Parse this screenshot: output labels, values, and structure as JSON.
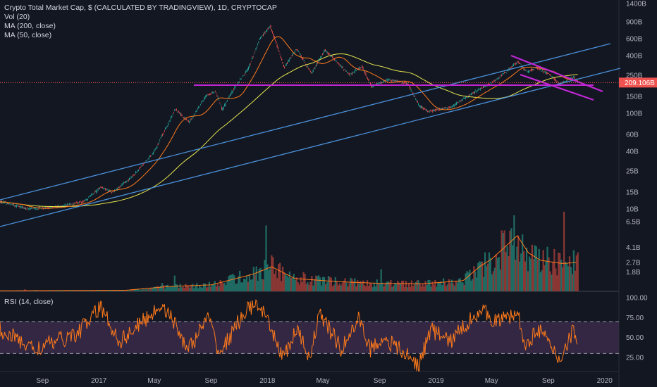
{
  "legend": {
    "title": "Crypto Total Market Cap, $ (CALCULATED BY TRADINGVIEW), 1D, CRYPTOCAP",
    "vol": "Vol (20)",
    "ma200": "MA (200, close)",
    "ma50": "MA (50, close)",
    "rsi": "RSI (14, close)"
  },
  "colors": {
    "background": "#131722",
    "up": "#26a69a",
    "down": "#ef5350",
    "ma50": "#ff7a1a",
    "ma200": "#e6e64d",
    "trendline": "#4a90d9",
    "wedge": "#c026d3",
    "rsi_line": "#ff7a1a",
    "rsi_band": "#3a2a4a",
    "current_price": "#ef5350"
  },
  "chart_data": {
    "type": "candlestick",
    "price_axis": {
      "scale": "log",
      "ticks": [
        "1400B",
        "900B",
        "600B",
        "400B",
        "250B",
        "150B",
        "100B",
        "60B",
        "40B",
        "25B",
        "15B",
        "10B"
      ],
      "current_price_label": "209.106B"
    },
    "volume_axis": {
      "ticks": [
        "6.5B",
        "4.1B",
        "2.7B",
        "1.8B"
      ]
    },
    "rsi_axis": {
      "ticks": [
        "100.00",
        "75.00",
        "50.00",
        "25.00"
      ],
      "levels": [
        70,
        30
      ]
    },
    "time_axis": {
      "ticks": [
        "Sep",
        "2017",
        "May",
        "Sep",
        "2018",
        "May",
        "Sep",
        "2019",
        "May",
        "Sep",
        "2020"
      ]
    },
    "price_anchors": [
      [
        "2016-06-01",
        12
      ],
      [
        "2016-08-01",
        10
      ],
      [
        "2016-10-01",
        10.5
      ],
      [
        "2016-12-01",
        12
      ],
      [
        "2017-01-05",
        17
      ],
      [
        "2017-02-01",
        15
      ],
      [
        "2017-03-15",
        22
      ],
      [
        "2017-05-01",
        40
      ],
      [
        "2017-06-15",
        110
      ],
      [
        "2017-07-15",
        80
      ],
      [
        "2017-08-20",
        150
      ],
      [
        "2017-09-10",
        170
      ],
      [
        "2017-09-25",
        110
      ],
      [
        "2017-10-20",
        180
      ],
      [
        "2017-11-20",
        290
      ],
      [
        "2017-12-15",
        600
      ],
      [
        "2018-01-07",
        820
      ],
      [
        "2018-02-06",
        300
      ],
      [
        "2018-03-05",
        470
      ],
      [
        "2018-04-06",
        260
      ],
      [
        "2018-05-05",
        460
      ],
      [
        "2018-06-28",
        250
      ],
      [
        "2018-07-24",
        310
      ],
      [
        "2018-08-14",
        190
      ],
      [
        "2018-09-20",
        225
      ],
      [
        "2018-10-31",
        205
      ],
      [
        "2018-11-25",
        120
      ],
      [
        "2018-12-15",
        105
      ],
      [
        "2019-02-01",
        115
      ],
      [
        "2019-04-02",
        175
      ],
      [
        "2019-05-15",
        230
      ],
      [
        "2019-06-26",
        345
      ],
      [
        "2019-07-17",
        270
      ],
      [
        "2019-08-06",
        300
      ],
      [
        "2019-09-05",
        250
      ],
      [
        "2019-09-26",
        200
      ],
      [
        "2019-10-26",
        240
      ],
      [
        "2019-11-04",
        209
      ]
    ],
    "volume_anchors": [
      [
        "2016-06-01",
        0.05
      ],
      [
        "2017-03-01",
        0.1
      ],
      [
        "2017-06-01",
        0.45
      ],
      [
        "2017-09-01",
        0.6
      ],
      [
        "2017-12-01",
        1.6
      ],
      [
        "2018-01-10",
        2.3
      ],
      [
        "2018-03-01",
        1.2
      ],
      [
        "2018-06-01",
        0.9
      ],
      [
        "2018-09-01",
        0.75
      ],
      [
        "2018-12-01",
        0.7
      ],
      [
        "2019-03-01",
        1.0
      ],
      [
        "2019-04-05",
        2.3
      ],
      [
        "2019-05-01",
        3.0
      ],
      [
        "2019-06-26",
        5.2
      ],
      [
        "2019-07-20",
        3.6
      ],
      [
        "2019-08-15",
        2.9
      ],
      [
        "2019-10-01",
        2.6
      ],
      [
        "2019-11-04",
        2.7
      ]
    ],
    "rsi_anchors": [
      [
        "2016-06-01",
        60
      ],
      [
        "2016-08-15",
        35
      ],
      [
        "2016-11-15",
        55
      ],
      [
        "2017-01-05",
        88
      ],
      [
        "2017-02-15",
        45
      ],
      [
        "2017-05-20",
        92
      ],
      [
        "2017-07-15",
        35
      ],
      [
        "2017-08-25",
        75
      ],
      [
        "2017-09-20",
        30
      ],
      [
        "2017-11-10",
        80
      ],
      [
        "2017-12-10",
        95
      ],
      [
        "2018-01-20",
        45
      ],
      [
        "2018-02-06",
        25
      ],
      [
        "2018-03-05",
        60
      ],
      [
        "2018-04-01",
        25
      ],
      [
        "2018-04-25",
        80
      ],
      [
        "2018-06-10",
        35
      ],
      [
        "2018-07-20",
        75
      ],
      [
        "2018-08-10",
        35
      ],
      [
        "2018-09-10",
        50
      ],
      [
        "2018-11-25",
        15
      ],
      [
        "2018-12-20",
        60
      ],
      [
        "2019-02-01",
        45
      ],
      [
        "2019-04-05",
        85
      ],
      [
        "2019-05-15",
        70
      ],
      [
        "2019-06-26",
        80
      ],
      [
        "2019-07-17",
        35
      ],
      [
        "2019-08-06",
        65
      ],
      [
        "2019-09-25",
        22
      ],
      [
        "2019-10-26",
        60
      ],
      [
        "2019-11-04",
        45
      ]
    ]
  }
}
